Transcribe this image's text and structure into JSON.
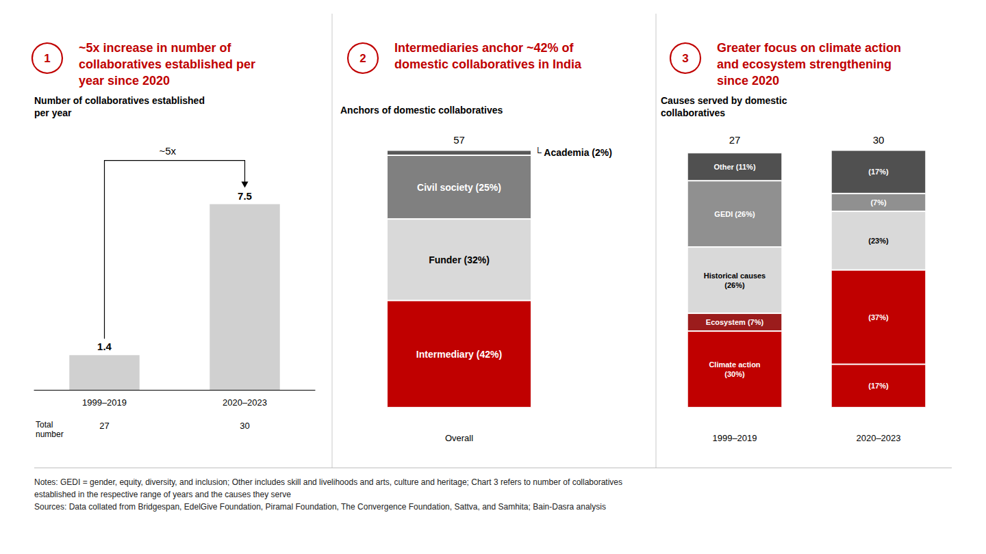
{
  "chart_data": [
    {
      "type": "bar",
      "heading": {
        "number": 1,
        "text": "~5x increase in number of\ncollaboratives established per\nyear since 2020",
        "color": "#C00000"
      },
      "title": "Number of collaboratives established\nper year",
      "categories": [
        "1999–2019",
        "2020–2023"
      ],
      "values": [
        1.4,
        7.5
      ],
      "color": "#d0d0d0",
      "data_labels": true,
      "ylim": [
        0,
        10.5
      ],
      "grid": false,
      "tick_labels": "x",
      "annotations": [
        "~5x"
      ],
      "totals_label": "Total\nnumber",
      "totals": [
        27,
        30
      ]
    },
    {
      "type": "bar",
      "stacked": true,
      "heading": {
        "number": 2,
        "text": "Intermediaries anchor ~42% of\ndomestic collaboratives in India",
        "color": "#C00000"
      },
      "title": "Anchors of domestic collaboratives",
      "categories": [
        "Overall"
      ],
      "ylim": [
        -7,
        110
      ],
      "grid": false,
      "tick_labels": "x",
      "totals": [
        57
      ],
      "series": [
        {
          "color": "#C00000",
          "values": [
            42
          ],
          "value_labels": [
            "Intermediary (42%)"
          ]
        },
        {
          "color": "#d9d9d9",
          "values": [
            32
          ],
          "value_labels": [
            "Funder (32%)"
          ]
        },
        {
          "color": "#808080",
          "values": [
            25
          ],
          "value_labels": [
            "Civil society (25%)"
          ]
        },
        {
          "color": "#595959",
          "values": [
            2
          ],
          "value_labels": [
            "└ Academia (2%)"
          ]
        }
      ]
    },
    {
      "type": "bar",
      "stacked": true,
      "heading": {
        "number": 3,
        "text": "Greater focus on climate action\nand ecosystem strengthening\nsince 2020",
        "color": "#C00000"
      },
      "title": "Causes served by domestic\ncollaboratives",
      "categories": [
        "1999–2019",
        "2020–2023"
      ],
      "ylim": [
        -7,
        110
      ],
      "grid": false,
      "tick_labels": "x",
      "totals": [
        27,
        30
      ],
      "series": [
        {
          "colors": [
            "#C00000",
            "#C00000"
          ],
          "values": [
            30,
            17
          ],
          "value_labels": [
            "Climate action\n(30%)",
            "(17%)"
          ]
        },
        {
          "colors": [
            "#9b1c1c",
            "#C00000"
          ],
          "values": [
            7,
            37
          ],
          "value_labels": [
            "Ecosystem (7%)",
            "(37%)"
          ]
        },
        {
          "colors": [
            "#d9d9d9",
            "#d9d9d9"
          ],
          "values": [
            26,
            23
          ],
          "value_labels": [
            "Historical causes\n(26%)",
            "(23%)"
          ]
        },
        {
          "colors": [
            "#909090",
            "#909090"
          ],
          "values": [
            26,
            7
          ],
          "value_labels": [
            "GEDI (26%)",
            "(7%)"
          ]
        },
        {
          "colors": [
            "#505050",
            "#505050"
          ],
          "values": [
            11,
            17
          ],
          "value_labels": [
            "Other (11%)",
            "(17%)"
          ]
        }
      ]
    }
  ],
  "notes": [
    "Notes: GEDI = gender, equity, diversity, and inclusion; Other includes skill and livelihoods and arts, culture and heritage; Chart 3 refers to number of collaboratives",
    "established in the respective range of years and the causes they serve",
    "Sources: Data collated from Bridgespan, EdelGive Foundation, Piramal Foundation, The Convergence Foundation, Sattva, and Samhita; Bain-Dasra analysis"
  ]
}
